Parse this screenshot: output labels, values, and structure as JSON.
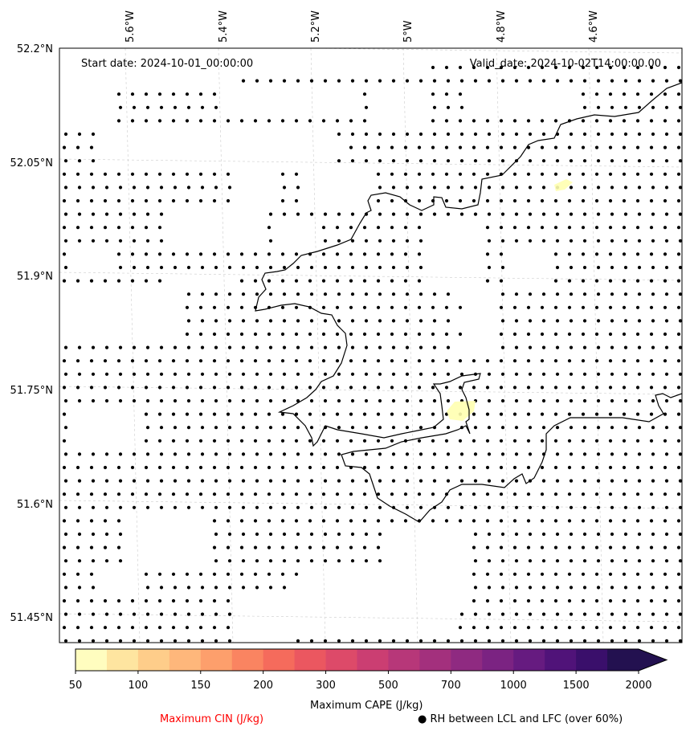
{
  "map": {
    "annotations": {
      "start_date": "Start date: 2024-10-01_00:00:00",
      "valid_date": "Valid_date: 2024-10-02T14:00:00.00"
    },
    "lat_ticks": [
      {
        "value": 52.2,
        "label": "52.2°N"
      },
      {
        "value": 52.05,
        "label": "52.05°N"
      },
      {
        "value": 51.9,
        "label": "51.9°N"
      },
      {
        "value": 51.75,
        "label": "51.75°N"
      },
      {
        "value": 51.6,
        "label": "51.6°N"
      },
      {
        "value": 51.45,
        "label": "51.45°N"
      }
    ],
    "lon_ticks": [
      {
        "value": -5.6,
        "label": "5.6°W"
      },
      {
        "value": -5.4,
        "label": "5.4°W"
      },
      {
        "value": -5.2,
        "label": "5.2°W"
      },
      {
        "value": -5.0,
        "label": "5°W"
      },
      {
        "value": -4.8,
        "label": "4.8°W"
      },
      {
        "value": -4.6,
        "label": "4.6°W"
      }
    ],
    "extent": {
      "lon_min": -5.74,
      "lon_max": -4.4,
      "lat_min": 51.42,
      "lat_max": 52.2
    },
    "grid": true,
    "coastline_color": "#000000",
    "highlight_color": "#ffffb0"
  },
  "colorbar": {
    "label": "Maximum CAPE (J/kg)",
    "levels": [
      "50",
      "100",
      "150",
      "200",
      "300",
      "500",
      "700",
      "1000",
      "1500",
      "2000"
    ],
    "colors": [
      "#fffdbf",
      "#fee5a0",
      "#fecd8a",
      "#feb77b",
      "#fd9f6c",
      "#fa8461",
      "#f56b5c",
      "#eb5760",
      "#dd4a69",
      "#cb3e72",
      "#b73779",
      "#a3307d",
      "#8f2a81",
      "#7b2382",
      "#661b80",
      "#501379",
      "#3a0f6b",
      "#231150"
    ],
    "extend": "max"
  },
  "legend": {
    "cin_label": "Maximum CIN (J/kg)",
    "cin_color": "#ff0000",
    "rh_label": "● RH between LCL and LFC (over 60%)"
  }
}
